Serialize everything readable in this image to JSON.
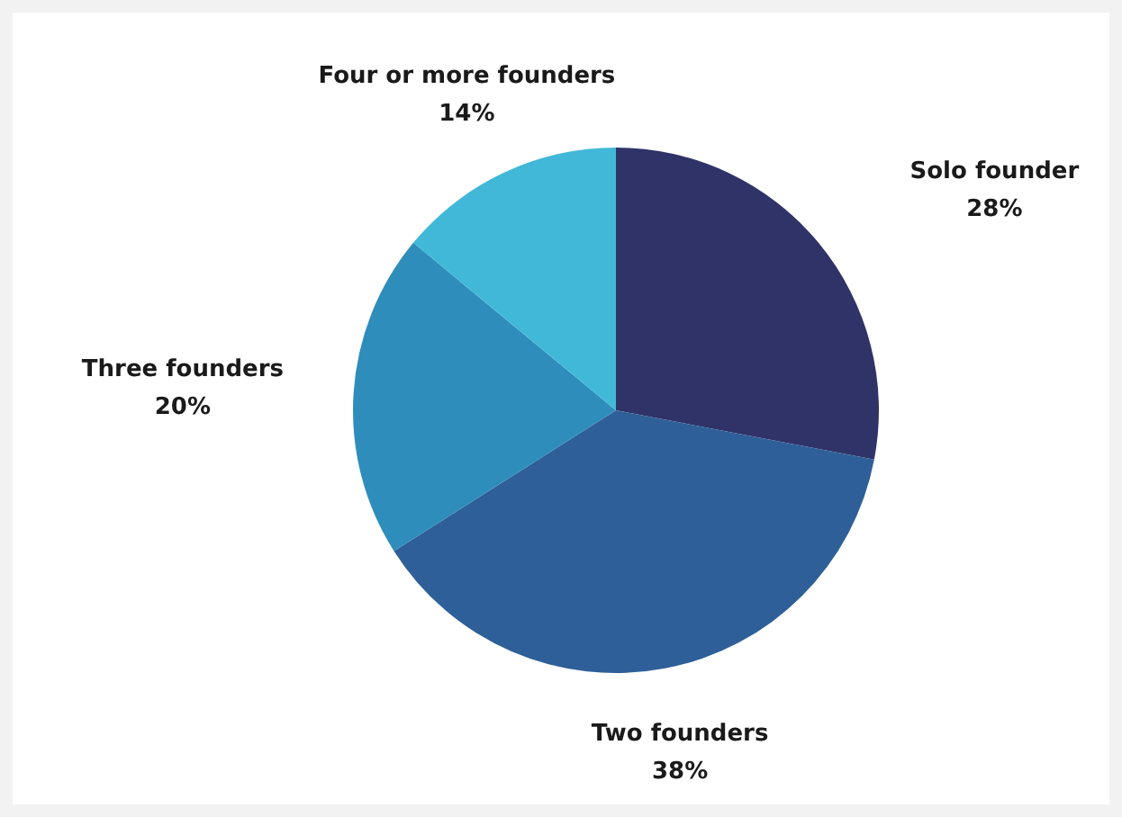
{
  "chart_data": {
    "type": "pie",
    "categories": [
      "Solo founder",
      "Two founders",
      "Three founders",
      "Four or more founders"
    ],
    "values": [
      28,
      38,
      20,
      14
    ],
    "colors": [
      "#2f3368",
      "#2e5f98",
      "#2e8dbb",
      "#42b8d8"
    ],
    "value_labels": [
      "28%",
      "38%",
      "20%",
      "14%"
    ]
  }
}
